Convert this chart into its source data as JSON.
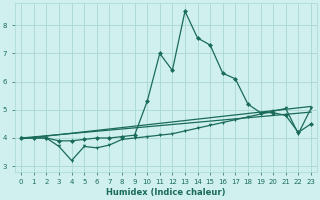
{
  "xlabel": "Humidex (Indice chaleur)",
  "x": [
    0,
    1,
    2,
    3,
    4,
    5,
    6,
    7,
    8,
    9,
    10,
    11,
    12,
    13,
    14,
    15,
    16,
    17,
    18,
    19,
    20,
    21,
    22,
    23
  ],
  "y_main": [
    4.0,
    4.0,
    4.0,
    3.9,
    3.9,
    3.95,
    4.0,
    4.0,
    4.05,
    4.1,
    5.3,
    7.0,
    6.4,
    8.5,
    7.55,
    7.3,
    6.3,
    6.1,
    5.2,
    4.9,
    4.9,
    4.8,
    4.2,
    4.5
  ],
  "y_trend1": [
    3.97,
    4.02,
    4.07,
    4.12,
    4.17,
    4.22,
    4.27,
    4.32,
    4.37,
    4.42,
    4.47,
    4.52,
    4.57,
    4.62,
    4.67,
    4.72,
    4.77,
    4.82,
    4.87,
    4.92,
    4.97,
    5.02,
    5.07,
    5.12
  ],
  "y_trend2": [
    4.0,
    4.04,
    4.08,
    4.12,
    4.16,
    4.2,
    4.24,
    4.28,
    4.32,
    4.36,
    4.4,
    4.44,
    4.48,
    4.52,
    4.56,
    4.6,
    4.64,
    4.68,
    4.72,
    4.76,
    4.8,
    4.84,
    4.88,
    4.92
  ],
  "y_zigzag": [
    4.0,
    4.0,
    4.0,
    3.7,
    3.2,
    3.7,
    3.65,
    3.75,
    3.95,
    4.0,
    4.05,
    4.1,
    4.15,
    4.25,
    4.35,
    4.45,
    4.55,
    4.65,
    4.75,
    4.85,
    4.95,
    5.05,
    4.15,
    5.05
  ],
  "bg_color": "#cff0ee",
  "line_color": "#1a6b5a",
  "grid_color": "#a8d8d4",
  "ylim": [
    2.8,
    8.8
  ],
  "xlim": [
    -0.5,
    23.5
  ],
  "yticks": [
    3,
    4,
    5,
    6,
    7,
    8
  ],
  "xticks": [
    0,
    1,
    2,
    3,
    4,
    5,
    6,
    7,
    8,
    9,
    10,
    11,
    12,
    13,
    14,
    15,
    16,
    17,
    18,
    19,
    20,
    21,
    22,
    23
  ],
  "marker_main": "D",
  "marker_zigzag": "v",
  "marker_size_main": 2.5,
  "marker_size_zigzag": 2.5,
  "line_width": 0.9,
  "xlabel_fontsize": 6,
  "tick_fontsize": 5,
  "tick_color": "#1a6b5a"
}
